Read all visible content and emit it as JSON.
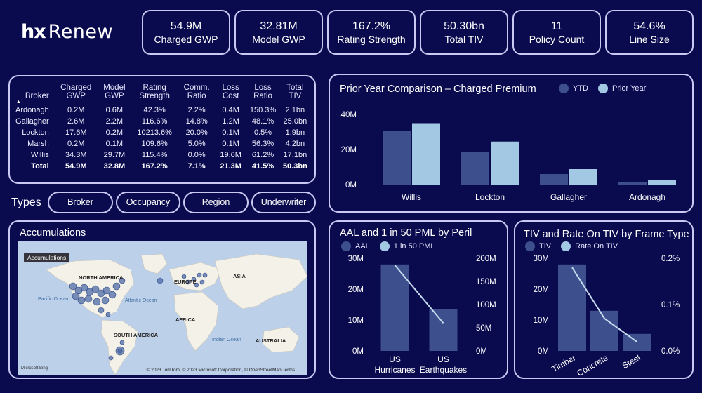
{
  "brand": {
    "prefix": "hx",
    "name": "Renew"
  },
  "kpis": [
    {
      "value": "54.9M",
      "label": "Charged GWP"
    },
    {
      "value": "32.81M",
      "label": "Model GWP"
    },
    {
      "value": "167.2%",
      "label": "Rating Strength"
    },
    {
      "value": "50.30bn",
      "label": "Total TIV"
    },
    {
      "value": "11",
      "label": "Policy Count"
    },
    {
      "value": "54.6%",
      "label": "Line Size"
    }
  ],
  "broker_table": {
    "headers": [
      "Broker",
      "Charged GWP",
      "Model GWP",
      "Rating Strength",
      "Comm. Ratio",
      "Loss Cost",
      "Loss Ratio",
      "Total TIV"
    ],
    "rows": [
      [
        "Ardonagh",
        "0.2M",
        "0.6M",
        "42.3%",
        "2.2%",
        "0.4M",
        "150.3%",
        "2.1bn"
      ],
      [
        "Gallagher",
        "2.6M",
        "2.2M",
        "116.6%",
        "14.8%",
        "1.2M",
        "48.1%",
        "25.0bn"
      ],
      [
        "Lockton",
        "17.6M",
        "0.2M",
        "10213.6%",
        "20.0%",
        "0.1M",
        "0.5%",
        "1.9bn"
      ],
      [
        "Marsh",
        "0.2M",
        "0.1M",
        "109.6%",
        "5.0%",
        "0.1M",
        "56.3%",
        "4.2bn"
      ],
      [
        "Willis",
        "34.3M",
        "29.7M",
        "115.4%",
        "0.0%",
        "19.6M",
        "61.2%",
        "17.1bn"
      ]
    ],
    "total": [
      "Total",
      "54.9M",
      "32.8M",
      "167.2%",
      "7.1%",
      "21.3M",
      "41.5%",
      "50.3bn"
    ]
  },
  "types": {
    "label": "Types",
    "buttons": [
      "Broker",
      "Occupancy",
      "Region",
      "Underwriter"
    ]
  },
  "accumulations": {
    "title": "Accumulations",
    "tag": "Accumulations",
    "labels": {
      "na": "NORTH AMERICA",
      "sa": "SOUTH AMERICA",
      "eu": "EUROPE",
      "af": "AFRICA",
      "as": "ASIA",
      "au": "AUSTRALIA",
      "pac": "Pacific Ocean",
      "atl": "Atlantic Ocean",
      "ind": "Indian Ocean"
    },
    "credit": "© 2023 TomTom, © 2023 Microsoft Corporation, © OpenStreetMap  Terms",
    "ms": "Microsoft Bing"
  },
  "colors": {
    "series1": "#3d4f8c",
    "series2": "#a3c8e4",
    "line": "#c7dbef"
  },
  "chart_data": [
    {
      "type": "bar",
      "title": "Prior Year Comparison – Charged Premium",
      "categories": [
        "Willis",
        "Lockton",
        "Gallagher",
        "Ardonagh"
      ],
      "series": [
        {
          "name": "YTD",
          "values": [
            30.5,
            18.5,
            6,
            1.2
          ]
        },
        {
          "name": "Prior Year",
          "values": [
            35,
            24.5,
            8.8,
            2.8
          ]
        }
      ],
      "yticks": [
        "40M",
        "20M",
        "0M"
      ],
      "ylim": [
        0,
        40
      ]
    },
    {
      "type": "bar",
      "title": "AAL and 1 in 50 PML by Peril",
      "categories": [
        "US Hurricanes",
        "US Earthquakes"
      ],
      "series": [
        {
          "name": "AAL",
          "values": [
            28,
            13.5
          ]
        },
        {
          "name": "1 in 50 PML",
          "values": [
            185,
            60
          ]
        }
      ],
      "yticks_left": [
        "30M",
        "20M",
        "10M",
        "0M"
      ],
      "yticks_right": [
        "200M",
        "150M",
        "100M",
        "50M",
        "0M"
      ],
      "ylim_left": [
        0,
        30
      ],
      "ylim_right": [
        0,
        200
      ]
    },
    {
      "type": "bar",
      "title": "TIV and Rate On TIV by Frame Type",
      "categories": [
        "Timber",
        "Concrete",
        "Steel"
      ],
      "series": [
        {
          "name": "TIV",
          "values": [
            28,
            13,
            5.5
          ]
        },
        {
          "name": "Rate On TIV",
          "values": [
            0.18,
            0.07,
            0.02
          ]
        }
      ],
      "yticks_left": [
        "30M",
        "20M",
        "10M",
        "0M"
      ],
      "yticks_right": [
        "0.2%",
        "0.1%",
        "0.0%"
      ],
      "ylim_left": [
        0,
        30
      ],
      "ylim_right": [
        0,
        0.2
      ]
    }
  ]
}
